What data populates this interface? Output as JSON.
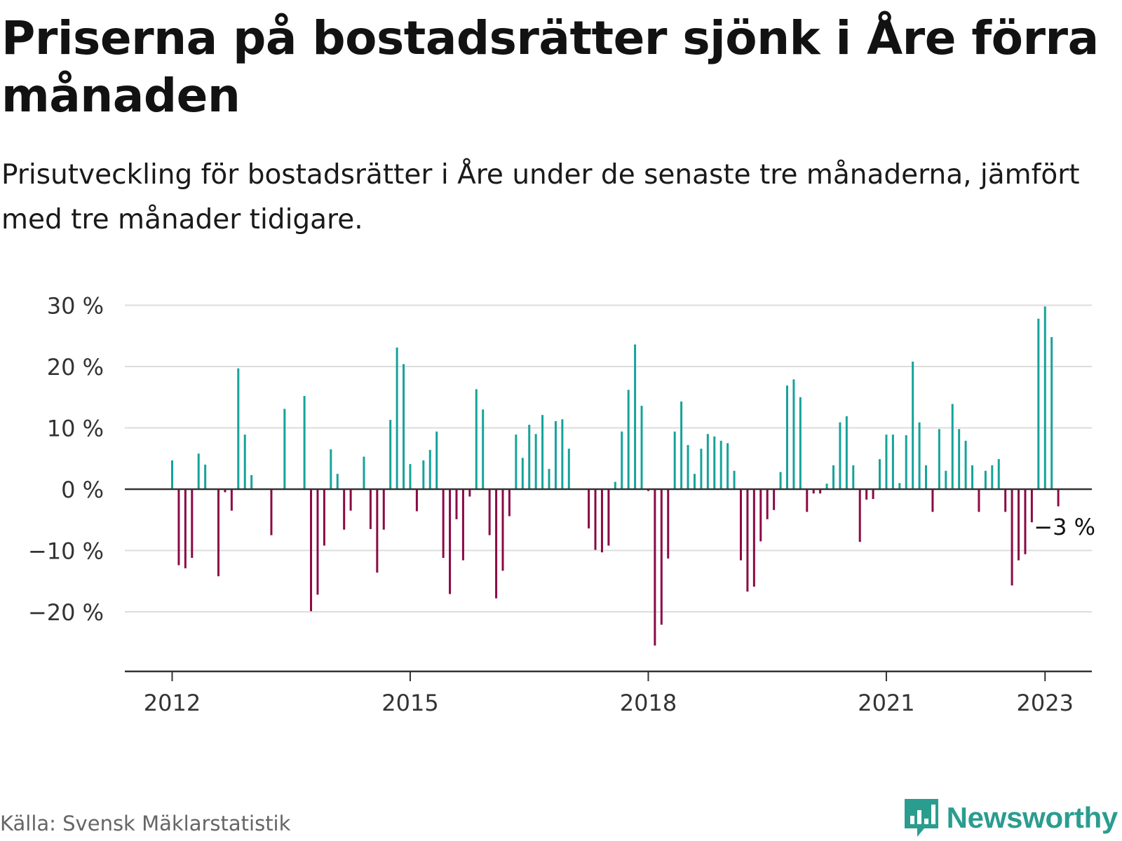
{
  "title": "Priserna på bostadsrätter sjönk i Åre förra månaden",
  "subtitle": "Prisutveckling för bostadsrätter i Åre under de senaste tre månaderna, jämfört med tre månader tidigare.",
  "source": "Källa: Svensk Mäklarstatistik",
  "brand": "Newsworthy",
  "colors": {
    "positive": "#15a39a",
    "negative": "#8b0a45",
    "grid": "#dddddd",
    "axis": "#333333"
  },
  "chart_data": {
    "type": "bar",
    "x_start": "2012-01",
    "x_unit": "month",
    "yticks": [
      30,
      20,
      10,
      0,
      -10,
      -20
    ],
    "ytick_labels": [
      "30 %",
      "20 %",
      "10 %",
      "0 %",
      "−10 %",
      "−20 %"
    ],
    "xticks": [
      {
        "date": "2012-01",
        "label": "2012"
      },
      {
        "date": "2015-01",
        "label": "2015"
      },
      {
        "date": "2018-01",
        "label": "2018"
      },
      {
        "date": "2021-01",
        "label": "2021"
      },
      {
        "date": "2023-01",
        "label": "2023"
      }
    ],
    "ylim": [
      -28,
      31
    ],
    "grid": true,
    "annotation": {
      "date": "2023-01",
      "label": "−3 %"
    },
    "series": [
      {
        "values": [
          {
            "x": "2012-01",
            "y": 4.7
          },
          {
            "x": "2012-02",
            "y": -12.4
          },
          {
            "x": "2012-03",
            "y": -12.9
          },
          {
            "x": "2012-04",
            "y": -11.2
          },
          {
            "x": "2012-05",
            "y": 5.8
          },
          {
            "x": "2012-06",
            "y": 4.0
          },
          {
            "x": "2012-08",
            "y": -14.2
          },
          {
            "x": "2012-09",
            "y": -0.5
          },
          {
            "x": "2012-10",
            "y": -3.5
          },
          {
            "x": "2012-11",
            "y": 19.7
          },
          {
            "x": "2012-12",
            "y": 8.9
          },
          {
            "x": "2013-01",
            "y": 2.3
          },
          {
            "x": "2013-04",
            "y": -7.5
          },
          {
            "x": "2013-06",
            "y": 13.1
          },
          {
            "x": "2013-09",
            "y": 15.2
          },
          {
            "x": "2013-10",
            "y": -19.9
          },
          {
            "x": "2013-11",
            "y": -17.2
          },
          {
            "x": "2013-12",
            "y": -9.2
          },
          {
            "x": "2014-01",
            "y": 6.5
          },
          {
            "x": "2014-02",
            "y": 2.5
          },
          {
            "x": "2014-03",
            "y": -6.6
          },
          {
            "x": "2014-04",
            "y": -3.5
          },
          {
            "x": "2014-06",
            "y": 5.3
          },
          {
            "x": "2014-07",
            "y": -6.5
          },
          {
            "x": "2014-08",
            "y": -13.6
          },
          {
            "x": "2014-09",
            "y": -6.6
          },
          {
            "x": "2014-10",
            "y": 11.3
          },
          {
            "x": "2014-11",
            "y": 23.1
          },
          {
            "x": "2014-12",
            "y": 20.4
          },
          {
            "x": "2015-01",
            "y": 4.1
          },
          {
            "x": "2015-02",
            "y": -3.6
          },
          {
            "x": "2015-03",
            "y": 4.7
          },
          {
            "x": "2015-04",
            "y": 6.4
          },
          {
            "x": "2015-05",
            "y": 9.4
          },
          {
            "x": "2015-06",
            "y": -11.2
          },
          {
            "x": "2015-07",
            "y": -17.1
          },
          {
            "x": "2015-08",
            "y": -4.9
          },
          {
            "x": "2015-09",
            "y": -11.6
          },
          {
            "x": "2015-10",
            "y": -1.2
          },
          {
            "x": "2015-11",
            "y": 16.3
          },
          {
            "x": "2015-12",
            "y": 13.0
          },
          {
            "x": "2016-01",
            "y": -7.5
          },
          {
            "x": "2016-02",
            "y": -17.8
          },
          {
            "x": "2016-03",
            "y": -13.3
          },
          {
            "x": "2016-04",
            "y": -4.4
          },
          {
            "x": "2016-05",
            "y": 8.9
          },
          {
            "x": "2016-06",
            "y": 5.1
          },
          {
            "x": "2016-07",
            "y": 10.5
          },
          {
            "x": "2016-08",
            "y": 9.0
          },
          {
            "x": "2016-09",
            "y": 12.1
          },
          {
            "x": "2016-10",
            "y": 3.3
          },
          {
            "x": "2016-11",
            "y": 11.1
          },
          {
            "x": "2016-12",
            "y": 11.4
          },
          {
            "x": "2017-01",
            "y": 6.6
          },
          {
            "x": "2017-04",
            "y": -6.4
          },
          {
            "x": "2017-05",
            "y": -9.9
          },
          {
            "x": "2017-06",
            "y": -10.3
          },
          {
            "x": "2017-07",
            "y": -9.2
          },
          {
            "x": "2017-08",
            "y": 1.2
          },
          {
            "x": "2017-09",
            "y": 9.4
          },
          {
            "x": "2017-10",
            "y": 16.2
          },
          {
            "x": "2017-11",
            "y": 23.6
          },
          {
            "x": "2017-12",
            "y": 13.6
          },
          {
            "x": "2018-01",
            "y": -0.3
          },
          {
            "x": "2018-02",
            "y": -25.5
          },
          {
            "x": "2018-03",
            "y": -22.1
          },
          {
            "x": "2018-04",
            "y": -11.3
          },
          {
            "x": "2018-05",
            "y": 9.4
          },
          {
            "x": "2018-06",
            "y": 14.3
          },
          {
            "x": "2018-07",
            "y": 7.2
          },
          {
            "x": "2018-08",
            "y": 2.5
          },
          {
            "x": "2018-09",
            "y": 6.6
          },
          {
            "x": "2018-10",
            "y": 9.0
          },
          {
            "x": "2018-11",
            "y": 8.6
          },
          {
            "x": "2018-12",
            "y": 7.9
          },
          {
            "x": "2019-01",
            "y": 7.5
          },
          {
            "x": "2019-02",
            "y": 3.0
          },
          {
            "x": "2019-03",
            "y": -11.6
          },
          {
            "x": "2019-04",
            "y": -16.7
          },
          {
            "x": "2019-05",
            "y": -15.9
          },
          {
            "x": "2019-06",
            "y": -8.5
          },
          {
            "x": "2019-07",
            "y": -4.9
          },
          {
            "x": "2019-08",
            "y": -3.4
          },
          {
            "x": "2019-09",
            "y": 2.8
          },
          {
            "x": "2019-10",
            "y": 16.9
          },
          {
            "x": "2019-11",
            "y": 17.9
          },
          {
            "x": "2019-12",
            "y": 15.0
          },
          {
            "x": "2020-01",
            "y": -3.7
          },
          {
            "x": "2020-02",
            "y": -0.7
          },
          {
            "x": "2020-03",
            "y": -0.7
          },
          {
            "x": "2020-04",
            "y": 0.9
          },
          {
            "x": "2020-05",
            "y": 3.9
          },
          {
            "x": "2020-06",
            "y": 10.9
          },
          {
            "x": "2020-07",
            "y": 11.9
          },
          {
            "x": "2020-08",
            "y": 3.9
          },
          {
            "x": "2020-09",
            "y": -8.6
          },
          {
            "x": "2020-10",
            "y": -1.7
          },
          {
            "x": "2020-11",
            "y": -1.6
          },
          {
            "x": "2020-12",
            "y": 4.9
          },
          {
            "x": "2021-01",
            "y": 8.9
          },
          {
            "x": "2021-02",
            "y": 8.9
          },
          {
            "x": "2021-03",
            "y": 1.0
          },
          {
            "x": "2021-04",
            "y": 8.8
          },
          {
            "x": "2021-05",
            "y": 20.8
          },
          {
            "x": "2021-06",
            "y": 10.9
          },
          {
            "x": "2021-07",
            "y": 3.9
          },
          {
            "x": "2021-08",
            "y": -3.7
          },
          {
            "x": "2021-09",
            "y": 9.8
          },
          {
            "x": "2021-10",
            "y": 3.0
          },
          {
            "x": "2021-11",
            "y": 13.9
          },
          {
            "x": "2021-12",
            "y": 9.8
          },
          {
            "x": "2022-01",
            "y": 7.9
          },
          {
            "x": "2022-02",
            "y": 3.9
          },
          {
            "x": "2022-03",
            "y": -3.7
          },
          {
            "x": "2022-04",
            "y": 3.0
          },
          {
            "x": "2022-05",
            "y": 3.9
          },
          {
            "x": "2022-06",
            "y": 4.9
          },
          {
            "x": "2022-07",
            "y": -3.7
          },
          {
            "x": "2022-08",
            "y": -15.7
          },
          {
            "x": "2022-09",
            "y": -11.6
          },
          {
            "x": "2022-10",
            "y": -10.6
          },
          {
            "x": "2022-11",
            "y": -5.4
          },
          {
            "x": "2022-12",
            "y": 27.8
          },
          {
            "x": "2023-01",
            "y": 29.8
          },
          {
            "x": "2023-02",
            "y": 24.8
          },
          {
            "x": "2023-03",
            "y": -2.8
          }
        ]
      }
    ]
  }
}
